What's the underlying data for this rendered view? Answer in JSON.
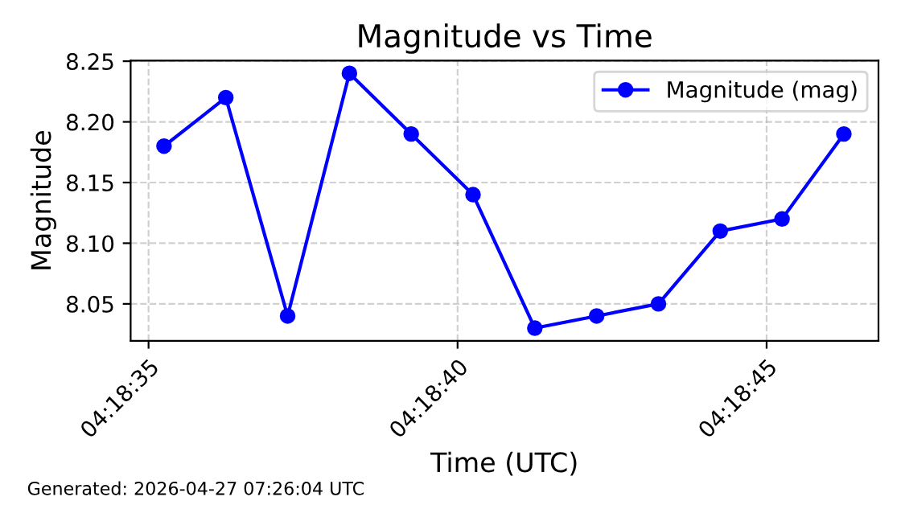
{
  "chart_data": {
    "type": "line",
    "title": "Magnitude vs Time",
    "xlabel": "Time (UTC)",
    "ylabel": "Magnitude",
    "x": [
      4.3097917,
      4.3100694,
      4.3103472,
      4.310625,
      4.3109028,
      4.3111806,
      4.3114583,
      4.3117361,
      4.3120139,
      4.3122917,
      4.3125694,
      4.3128472
    ],
    "series": [
      {
        "name": "Magnitude (mag)",
        "color": "#0000ff",
        "values": [
          8.18,
          8.22,
          8.04,
          8.24,
          8.19,
          8.14,
          8.03,
          8.04,
          8.05,
          8.11,
          8.12,
          8.19
        ]
      }
    ],
    "xlim": [
      4.3096417,
      4.3130028
    ],
    "ylim": [
      8.0195,
      8.2505
    ],
    "xticks": [
      {
        "value": 4.3097222,
        "label": "04:18:35"
      },
      {
        "value": 4.3111111,
        "label": "04:18:40"
      },
      {
        "value": 4.3125,
        "label": "04:18:45"
      }
    ],
    "yticks": [
      8.05,
      {
        "value": 8.1,
        "label": "8.10"
      },
      8.15,
      {
        "value": 8.2,
        "label": "8.20"
      },
      8.25
    ],
    "grid": true,
    "legend": "top right",
    "marker": "circle",
    "line_style": "solid",
    "annotations": [
      "Generated: 2026-04-27 07:26:04 UTC"
    ]
  }
}
